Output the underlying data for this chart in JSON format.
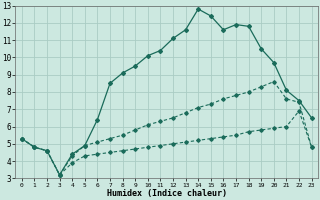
{
  "xlabel": "Humidex (Indice chaleur)",
  "background_color": "#cce8e0",
  "grid_color": "#aaccc4",
  "line_color": "#1a6b5a",
  "xlim": [
    -0.5,
    23.5
  ],
  "ylim": [
    3,
    13
  ],
  "xticks": [
    0,
    1,
    2,
    3,
    4,
    5,
    6,
    7,
    8,
    9,
    10,
    11,
    12,
    13,
    14,
    15,
    16,
    17,
    18,
    19,
    20,
    21,
    22,
    23
  ],
  "yticks": [
    3,
    4,
    5,
    6,
    7,
    8,
    9,
    10,
    11,
    12,
    13
  ],
  "curve1_x": [
    0,
    1,
    2,
    3,
    4,
    5,
    6,
    7,
    8,
    9,
    10,
    11,
    12,
    13,
    14,
    15,
    16,
    17,
    18,
    19,
    20,
    21,
    22,
    23
  ],
  "curve1_y": [
    5.3,
    4.8,
    4.6,
    3.2,
    4.4,
    4.9,
    6.4,
    8.5,
    9.1,
    9.5,
    10.1,
    10.4,
    11.1,
    11.6,
    12.8,
    12.4,
    11.6,
    11.9,
    11.8,
    10.5,
    9.7,
    8.1,
    7.5,
    6.5
  ],
  "curve2_x": [
    0,
    1,
    2,
    3,
    4,
    5,
    6,
    7,
    8,
    9,
    10,
    11,
    12,
    13,
    14,
    15,
    16,
    17,
    18,
    19,
    20,
    21,
    22,
    23
  ],
  "curve2_y": [
    5.3,
    4.8,
    4.6,
    3.2,
    4.3,
    4.9,
    5.1,
    5.3,
    5.5,
    5.8,
    6.1,
    6.3,
    6.5,
    6.8,
    7.1,
    7.3,
    7.6,
    7.8,
    8.0,
    8.3,
    8.6,
    7.6,
    7.4,
    4.8
  ],
  "curve3_x": [
    0,
    1,
    2,
    3,
    4,
    5,
    6,
    7,
    8,
    9,
    10,
    11,
    12,
    13,
    14,
    15,
    16,
    17,
    18,
    19,
    20,
    21,
    22,
    23
  ],
  "curve3_y": [
    5.3,
    4.8,
    4.6,
    3.2,
    3.9,
    4.3,
    4.4,
    4.5,
    4.6,
    4.7,
    4.8,
    4.9,
    5.0,
    5.1,
    5.2,
    5.3,
    5.4,
    5.5,
    5.7,
    5.8,
    5.9,
    6.0,
    6.9,
    4.8
  ]
}
